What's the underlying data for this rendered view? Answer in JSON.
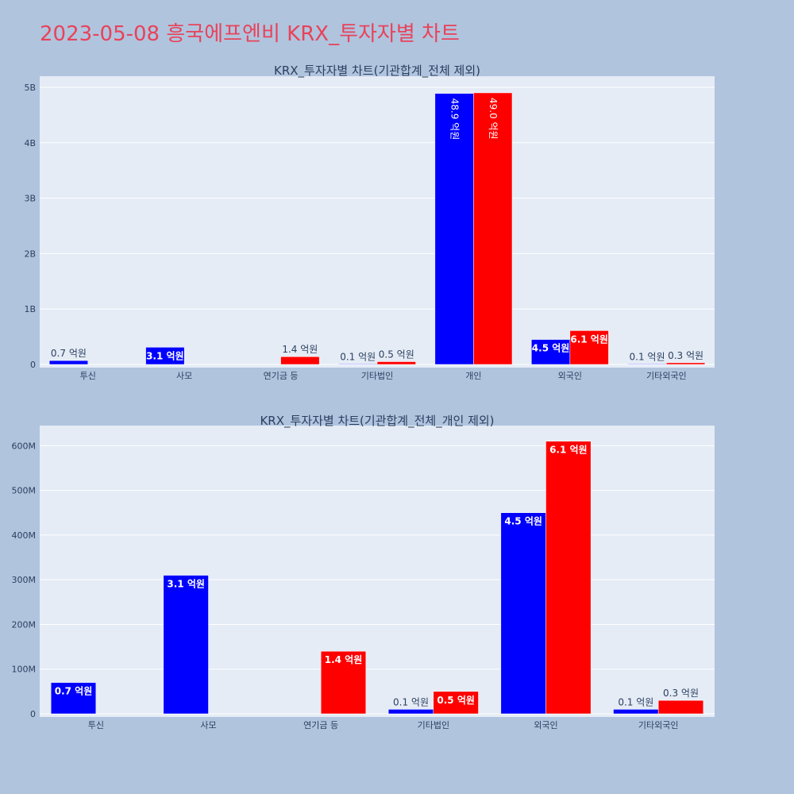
{
  "page": {
    "title": "2023-05-08 흥국에프엔비 KRX_투자자별 차트"
  },
  "colors": {
    "background": "#b0c4de",
    "plot_bg": "#e5ecf6",
    "title": "#e8435a",
    "buy": "#0000ff",
    "sell": "#ff0000"
  },
  "chart_data": [
    {
      "type": "bar",
      "title": "KRX_투자자별 차트(기관합계_전체 제외)",
      "categories": [
        "투신",
        "사모",
        "연기금 등",
        "기타법인",
        "개인",
        "외국인",
        "기타외국인"
      ],
      "series": [
        {
          "color": "#0000ff",
          "values": [
            70000000,
            310000000,
            0,
            10000000,
            4890000000,
            450000000,
            10000000
          ],
          "labels": [
            "0.7 억원",
            "3.1 억원",
            "",
            "0.1 억원",
            "48.9 억원",
            "4.5 억원",
            "0.1 억원"
          ]
        },
        {
          "color": "#ff0000",
          "values": [
            0,
            0,
            140000000,
            50000000,
            4900000000,
            610000000,
            30000000
          ],
          "labels": [
            "",
            "",
            "1.4 억원",
            "0.5 억원",
            "49.0 억원",
            "6.1 억원",
            "0.3 억원"
          ]
        }
      ],
      "ylim": [
        0,
        5200000000
      ],
      "yticks": [
        0,
        1000000000,
        2000000000,
        3000000000,
        4000000000,
        5000000000
      ],
      "ytick_labels": [
        "0",
        "1B",
        "2B",
        "3B",
        "4B",
        "5B"
      ],
      "xlabel": "",
      "ylabel": "",
      "grid": true
    },
    {
      "type": "bar",
      "title": "KRX_투자자별 차트(기관합계_전체_개인 제외)",
      "categories": [
        "투신",
        "사모",
        "연기금 등",
        "기타법인",
        "외국인",
        "기타외국인"
      ],
      "series": [
        {
          "color": "#0000ff",
          "values": [
            70000000,
            310000000,
            0,
            10000000,
            450000000,
            10000000
          ],
          "labels": [
            "0.7 억원",
            "3.1 억원",
            "",
            "0.1 억원",
            "4.5 억원",
            "0.1 억원"
          ]
        },
        {
          "color": "#ff0000",
          "values": [
            0,
            0,
            140000000,
            50000000,
            610000000,
            30000000
          ],
          "labels": [
            "",
            "",
            "1.4 억원",
            "0.5 억원",
            "6.1 억원",
            "0.3 억원"
          ]
        }
      ],
      "ylim": [
        0,
        645000000
      ],
      "yticks": [
        0,
        100000000,
        200000000,
        300000000,
        400000000,
        500000000,
        600000000
      ],
      "ytick_labels": [
        "0",
        "100M",
        "200M",
        "300M",
        "400M",
        "500M",
        "600M"
      ],
      "xlabel": "",
      "ylabel": "",
      "grid": true
    }
  ]
}
